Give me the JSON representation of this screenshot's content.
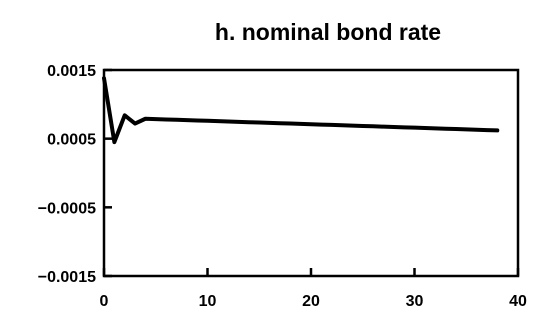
{
  "chart_data": {
    "type": "line",
    "title": "h.  nominal bond rate",
    "xlabel": "",
    "ylabel": "",
    "xlim": [
      0,
      40
    ],
    "ylim": [
      -0.0015,
      0.0015
    ],
    "xticks": [
      0,
      10,
      20,
      30,
      40
    ],
    "xtick_labels": [
      "0",
      "10",
      "20",
      "30",
      "40"
    ],
    "yticks": [
      0.0015,
      0.0005,
      -0.0005,
      -0.0015
    ],
    "ytick_labels": [
      "0.0015",
      "0.0005",
      "−0.0005",
      "−0.0015"
    ],
    "grid": false,
    "series": [
      {
        "x": [
          0,
          1,
          2,
          3,
          4,
          5,
          6,
          7,
          8,
          9,
          10,
          11,
          12,
          13,
          14,
          15,
          16,
          17,
          18,
          19,
          20,
          21,
          22,
          23,
          24,
          25,
          26,
          27,
          28,
          29,
          30,
          31,
          32,
          33,
          34,
          35,
          36,
          37,
          38
        ],
        "values": [
          0.00138,
          0.00045,
          0.00084,
          0.00072,
          0.00079,
          0.000785,
          0.00078,
          0.000775,
          0.00077,
          0.000765,
          0.00076,
          0.000755,
          0.00075,
          0.000745,
          0.00074,
          0.000735,
          0.00073,
          0.000725,
          0.00072,
          0.000715,
          0.00071,
          0.000705,
          0.0007,
          0.000695,
          0.00069,
          0.000685,
          0.00068,
          0.000675,
          0.00067,
          0.000665,
          0.00066,
          0.000655,
          0.00065,
          0.000645,
          0.00064,
          0.000635,
          0.00063,
          0.000625,
          0.00062
        ]
      }
    ]
  }
}
